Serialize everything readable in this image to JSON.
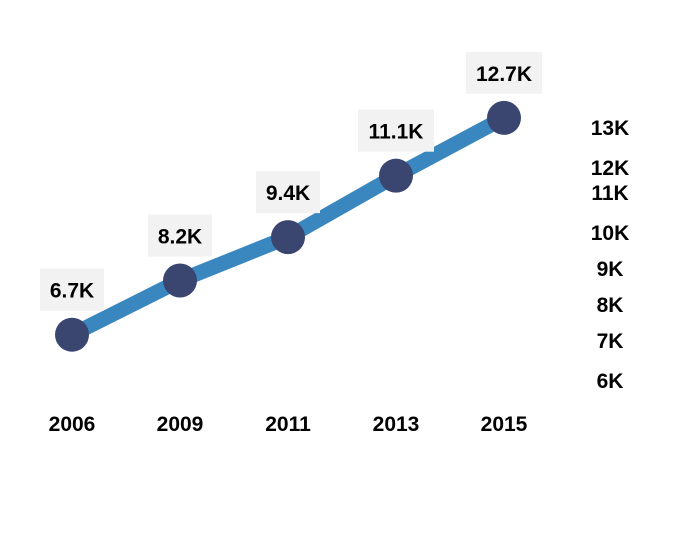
{
  "chart_data": {
    "type": "line",
    "title": "",
    "xlabel": "",
    "ylabel": "",
    "categories": [
      "2006",
      "2009",
      "2011",
      "2013",
      "2015"
    ],
    "values": [
      6.7,
      8.2,
      9.4,
      11.1,
      12.7
    ],
    "data_labels": [
      "6.7K",
      "8.2K",
      "9.4K",
      "11.1K",
      "12.7K"
    ],
    "ylim": [
      6,
      13
    ],
    "y_ticks": [
      {
        "label": "13K",
        "value": 13.0
      },
      {
        "label": "12K",
        "value": 11.9
      },
      {
        "label": "11K",
        "value": 11.2
      },
      {
        "label": "10K",
        "value": 10.1
      },
      {
        "label": "9K",
        "value": 9.1
      },
      {
        "label": "8K",
        "value": 8.1
      },
      {
        "label": "7K",
        "value": 7.1
      },
      {
        "label": "6K",
        "value": 6.0
      }
    ],
    "y_axis_position": "right",
    "grid": false,
    "legend": "none",
    "colors": {
      "line": "#3a87c0",
      "marker": "#3b4670",
      "label_box": "#f2f2f2",
      "text": "#000000"
    }
  }
}
